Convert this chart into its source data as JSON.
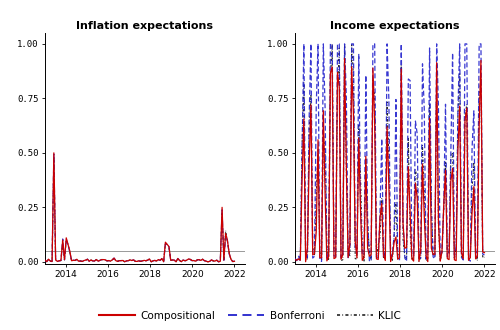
{
  "title_left": "Inflation expectations",
  "title_right": "Income expectations",
  "xlim": [
    2013.0,
    2022.5
  ],
  "ylim": [
    -0.01,
    1.05
  ],
  "yticks": [
    0.0,
    0.25,
    0.5,
    0.75,
    1.0
  ],
  "ytick_labels": [
    "0.00",
    "0.25",
    "0.50",
    "0.75",
    "1.00"
  ],
  "xticks": [
    2014,
    2016,
    2018,
    2020,
    2022
  ],
  "hline_y": 0.05,
  "hline_color": "#999999",
  "color_comp": "#cc0000",
  "color_bonf": "#2222cc",
  "color_klic": "#111111",
  "lw_comp": 0.9,
  "lw_bonf": 0.9,
  "lw_klic": 0.8,
  "legend_labels": [
    "Compositional",
    "Bonferroni",
    "KLIC"
  ],
  "title_fontsize": 8,
  "tick_fontsize": 6.5,
  "legend_fontsize": 7.5,
  "figsize": [
    5.0,
    3.3
  ],
  "dpi": 100
}
